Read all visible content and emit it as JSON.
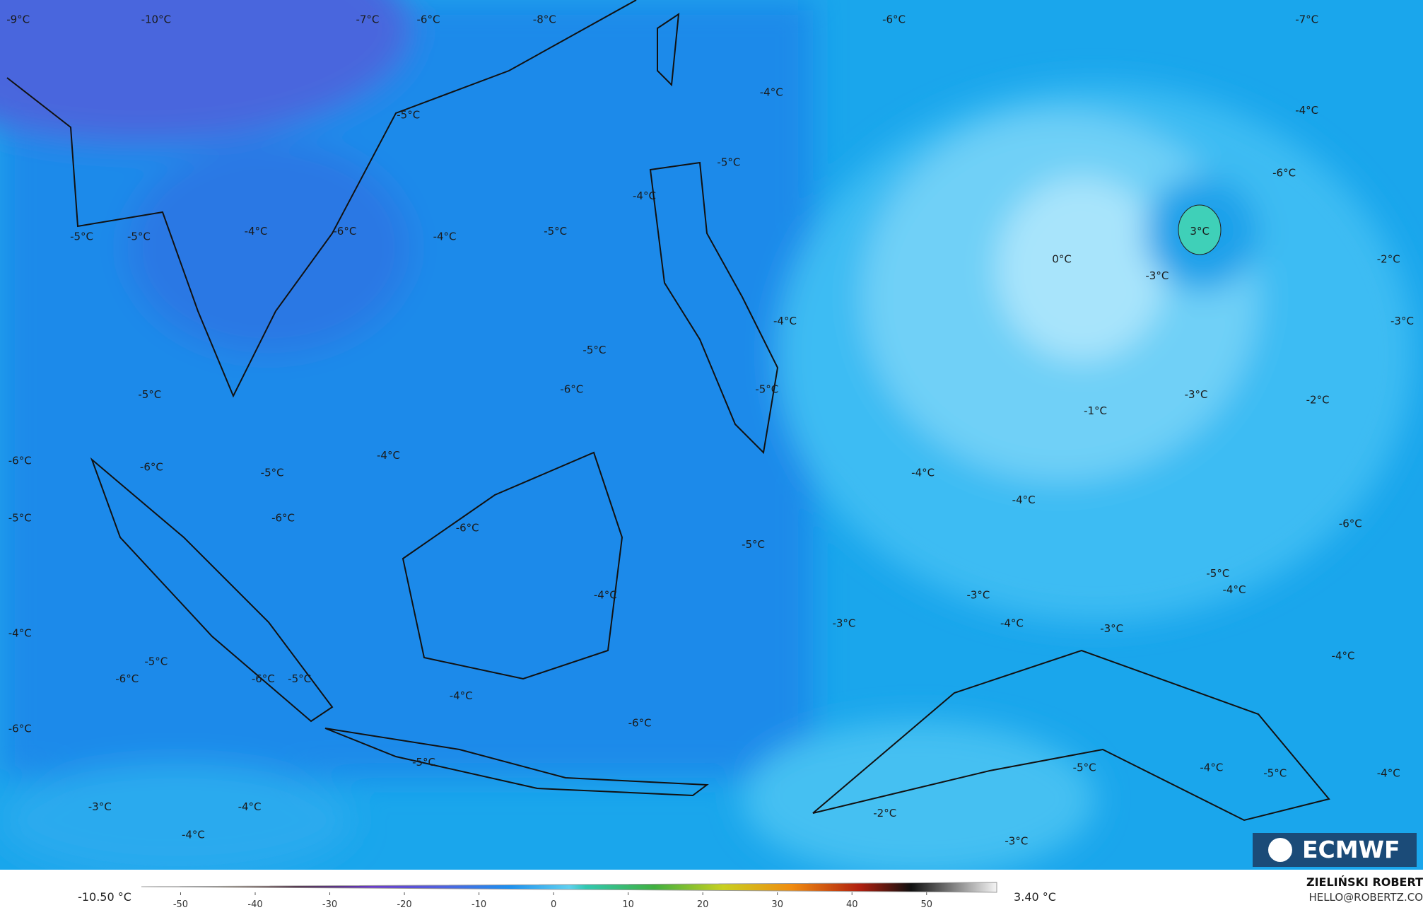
{
  "map": {
    "labels": [
      "-9°C",
      "-10°C",
      "-7°C",
      "-6°C",
      "-8°C",
      "-6°C",
      "-7°C",
      "-4°C",
      "-4°C",
      "-5°C",
      "-5°C",
      "-6°C",
      "-4°C",
      "-5°C",
      "-4°C",
      "-4°C",
      "-6°C",
      "-5°C",
      "-5°C",
      "3°C",
      "0°C",
      "-3°C",
      "-2°C",
      "-3°C",
      "-4°C",
      "-5°C",
      "-6°C",
      "-5°C",
      "-3°C",
      "-2°C",
      "-1°C",
      "-5°C",
      "-4°C",
      "-6°C",
      "-6°C",
      "-5°C",
      "-4°C",
      "-4°C",
      "-5°C",
      "-6°C",
      "-6°C",
      "-6°C",
      "-5°C",
      "-5°C",
      "-4°C",
      "-4°C",
      "-3°C",
      "-3°C",
      "-4°C",
      "-3°C",
      "-4°C",
      "-4°C",
      "-5°C",
      "-6°C",
      "-6°C",
      "-5°C",
      "-4°C",
      "-6°C",
      "-6°C",
      "-5°C",
      "-5°C",
      "-4°C",
      "-5°C",
      "-4°C",
      "-3°C",
      "-4°C",
      "-2°C",
      "-4°C",
      "-3°C"
    ]
  },
  "colorbar": {
    "ticks": [
      -50,
      -40,
      -30,
      -20,
      -10,
      0,
      10,
      20,
      30,
      40,
      50
    ],
    "min_label": "-10.50 °C",
    "max_label": "3.40 °C"
  },
  "credit": {
    "author": "ZIELIŃSKI ROBERT",
    "email": "HELLO@ROBERTZ.CO"
  },
  "logo": "ECMWF"
}
